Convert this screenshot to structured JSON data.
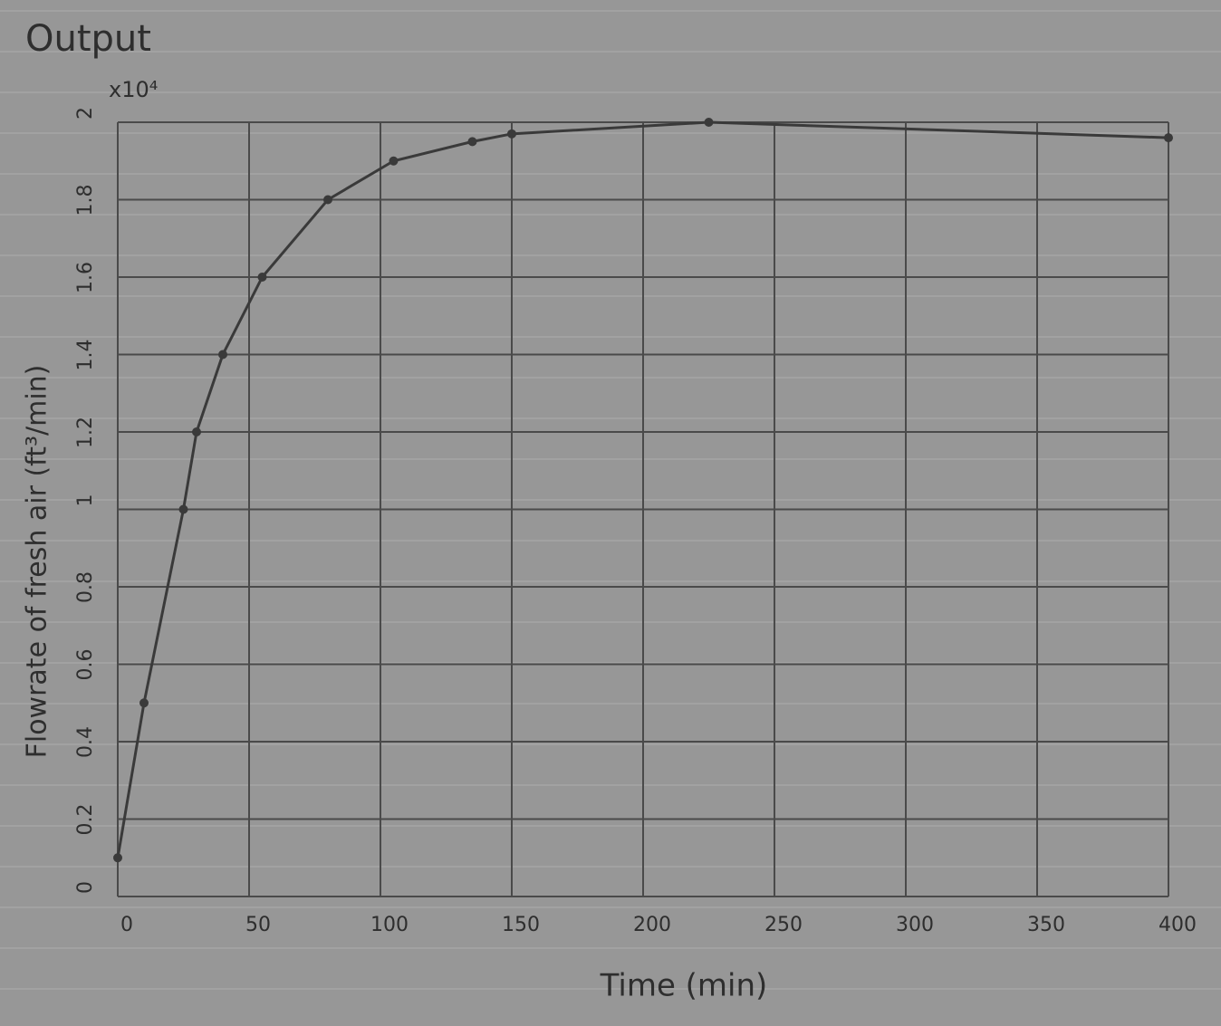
{
  "chart_data": {
    "type": "line",
    "title": "Output",
    "y_multiplier": "x10⁴",
    "x_label": "Time (min)",
    "y_label": "Flowrate of fresh air (ft³/min)",
    "x": [
      0,
      10,
      25,
      30,
      40,
      55,
      80,
      105,
      135,
      150,
      225,
      400
    ],
    "values": [
      0.1,
      0.5,
      1.0,
      1.2,
      1.4,
      1.6,
      1.8,
      1.9,
      1.95,
      1.97,
      2.0,
      1.96
    ],
    "color": "#3a3a3a",
    "xlim": [
      0,
      400
    ],
    "xticks": [
      0,
      50,
      100,
      150,
      200,
      250,
      300,
      350,
      400
    ],
    "ylim": [
      0,
      2
    ],
    "yticks": [
      0,
      0.2,
      0.4,
      0.6,
      0.8,
      1,
      1.2,
      1.4,
      1.6,
      1.8,
      2
    ],
    "grid": true
  }
}
